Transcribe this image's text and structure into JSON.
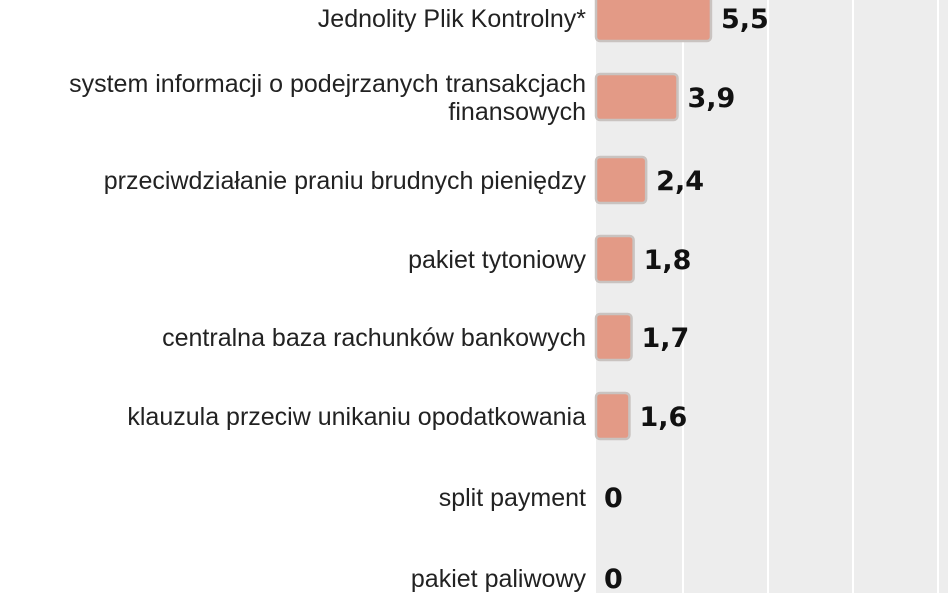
{
  "chart_data": {
    "type": "bar",
    "orientation": "horizontal",
    "categories": [
      [
        "Jednolity Plik Kontrolny*"
      ],
      [
        "system informacji o podejrzanych transakcjach",
        "finansowych"
      ],
      [
        "przeciwdziałanie praniu brudnych pieniędzy"
      ],
      [
        "pakiet tytoniowy"
      ],
      [
        "centralna baza rachunków bankowych"
      ],
      [
        "klauzula przeciw unikaniu opodatkowania"
      ],
      [
        "split payment"
      ],
      [
        "pakiet paliwowy"
      ]
    ],
    "values": [
      5.5,
      3.9,
      2.4,
      1.8,
      1.7,
      1.6,
      0,
      0
    ],
    "value_labels": [
      "5,5",
      "3,9",
      "2,4",
      "1,8",
      "1,7",
      "1,6",
      "0",
      "0"
    ],
    "xlim": [
      0,
      14.5
    ],
    "grid": true,
    "colors": {
      "bar_fill": "#e39a86",
      "bar_stroke": "#c9c3c0",
      "plot_background": "#ededed",
      "gridline": "#ffffff"
    }
  }
}
